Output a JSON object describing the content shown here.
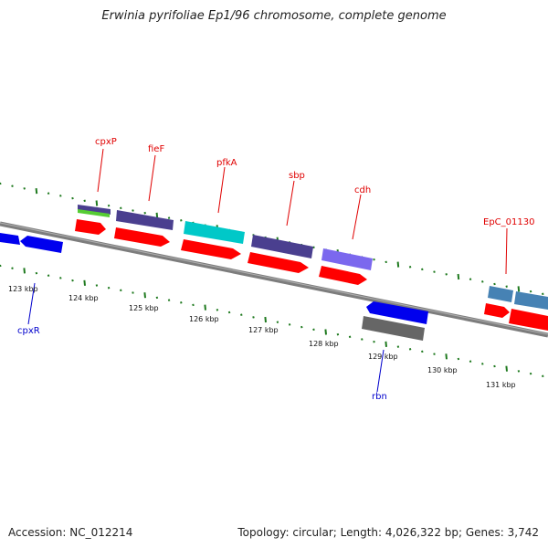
{
  "title": "Erwinia pyrifoliae Ep1/96 chromosome, complete genome",
  "footer": {
    "accession": "Accession: NC_012214",
    "summary": "Topology: circular; Length: 4,026,322 bp; Genes: 3,742"
  },
  "colors": {
    "backbone": "#8a8a8a",
    "tick": "#1f7a1f",
    "forward_label": "#e00000",
    "reverse_label": "#0000cc",
    "cds_red": "#ff0000",
    "cds_blue": "#0000ee",
    "gene_purple": "#4a3f8f",
    "gene_cyan": "#00c8c8",
    "gene_violet": "#7b68ee",
    "gene_steel": "#4682b4",
    "gene_gray": "#666666",
    "gene_green": "#55cc33"
  },
  "position_labels": [
    "123 kbp",
    "124 kbp",
    "125 kbp",
    "126 kbp",
    "127 kbp",
    "128 kbp",
    "129 kbp",
    "130 kbp",
    "131 kbp"
  ],
  "genes": [
    {
      "name": "cpxP",
      "strand": "forward"
    },
    {
      "name": "fieF",
      "strand": "forward"
    },
    {
      "name": "pfkA",
      "strand": "forward"
    },
    {
      "name": "sbp",
      "strand": "forward"
    },
    {
      "name": "cdh",
      "strand": "forward"
    },
    {
      "name": "EpC_01130",
      "strand": "forward"
    },
    {
      "name": "cpxR",
      "strand": "reverse"
    },
    {
      "name": "rbn",
      "strand": "reverse"
    }
  ]
}
